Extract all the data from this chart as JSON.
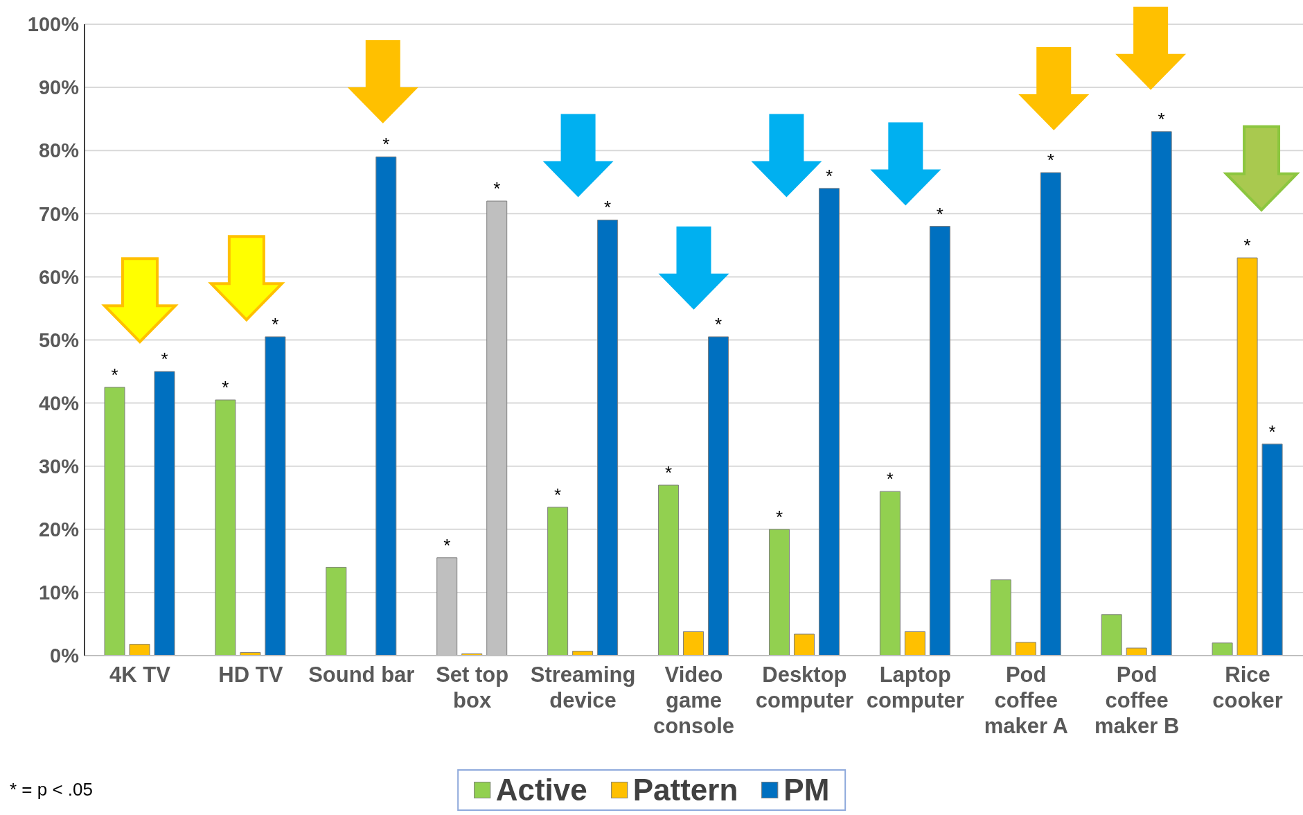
{
  "chart_data": {
    "type": "bar",
    "categories": [
      "4K TV",
      "HD TV",
      "Sound bar",
      "Set top box",
      "Streaming device",
      "Video game console",
      "Desktop computer",
      "Laptop computer",
      "Pod coffee maker A",
      "Pod coffee maker B",
      "Rice cooker"
    ],
    "series": [
      {
        "name": "Active",
        "color": "#92d050",
        "colors": [
          "#92d050",
          "#92d050",
          "#92d050",
          "#bfbfbf",
          "#92d050",
          "#92d050",
          "#92d050",
          "#92d050",
          "#92d050",
          "#92d050",
          "#92d050"
        ],
        "values": [
          42.5,
          40.5,
          14,
          15.5,
          23.5,
          27,
          20,
          26,
          12,
          6.5,
          2
        ],
        "value_labels": [
          "*",
          "*",
          null,
          "*",
          "*",
          "*",
          "*",
          "*",
          null,
          null,
          null
        ]
      },
      {
        "name": "Pattern",
        "color": "#ffc000",
        "values": [
          1.8,
          0.5,
          null,
          0.3,
          0.7,
          3.8,
          3.4,
          3.8,
          2.1,
          1.2,
          63
        ],
        "value_labels": [
          null,
          null,
          null,
          null,
          null,
          null,
          null,
          null,
          null,
          null,
          "*"
        ]
      },
      {
        "name": "PM",
        "color": "#0070c0",
        "colors": [
          "#0070c0",
          "#0070c0",
          "#0070c0",
          "#bfbfbf",
          "#0070c0",
          "#0070c0",
          "#0070c0",
          "#0070c0",
          "#0070c0",
          "#0070c0",
          "#0070c0"
        ],
        "values": [
          45,
          50.5,
          79,
          72,
          69,
          50.5,
          74,
          68,
          76.5,
          83,
          33.5
        ],
        "value_labels": [
          "*",
          "*",
          "*",
          "*",
          "*",
          "*",
          "*",
          "*",
          "*",
          "*",
          "*"
        ]
      }
    ],
    "ylim": [
      0,
      100
    ],
    "yticks": [
      {
        "value": 0,
        "label": "0%"
      },
      {
        "value": 10,
        "label": "10%"
      },
      {
        "value": 20,
        "label": "20%"
      },
      {
        "value": 30,
        "label": "30%"
      },
      {
        "value": 40,
        "label": "40%"
      },
      {
        "value": 50,
        "label": "50%"
      },
      {
        "value": 60,
        "label": "60%"
      },
      {
        "value": 70,
        "label": "70%"
      },
      {
        "value": 80,
        "label": "80%"
      },
      {
        "value": 90,
        "label": "90%"
      },
      {
        "value": 100,
        "label": "100%"
      }
    ],
    "grid": "y",
    "legend": "bottom",
    "annotations": [
      "* = p < .05"
    ]
  }
}
